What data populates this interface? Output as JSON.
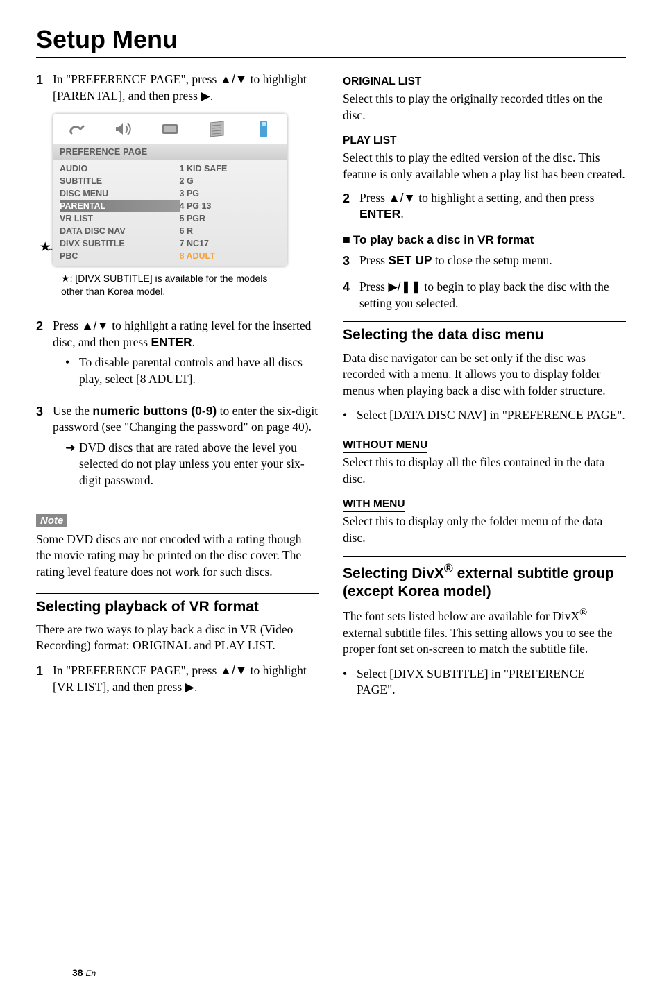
{
  "title": "Setup Menu",
  "left": {
    "step1": {
      "pre": "In \"PREFERENCE PAGE\", press ",
      "arrows": "▲/▼",
      "mid": " to highlight [PARENTAL], and then press ",
      "end": "▶",
      "dot": "."
    },
    "screenshot": {
      "header": "PREFERENCE PAGE",
      "left_rows": [
        "AUDIO",
        "SUBTITLE",
        "DISC MENU",
        "PARENTAL",
        "VR LIST",
        "DATA DISC NAV",
        "DIVX SUBTITLE",
        "PBC"
      ],
      "left_sel_index": 3,
      "right_rows": [
        "1 KID SAFE",
        "2 G",
        "3 PG",
        "4 PG 13",
        "5 PGR",
        "6 R",
        "7 NC17",
        "8 ADULT"
      ],
      "right_sel_index": 7
    },
    "caption_star": "★",
    "caption": ": [DIVX SUBTITLE] is available for the models other than Korea model.",
    "step2": {
      "pre": "Press ",
      "arrows": "▲/▼",
      "mid": " to highlight a rating level for the inserted disc, and then press ",
      "btn": "ENTER",
      "dot": ".",
      "bullet": "To disable parental controls and have all discs play, select [8 ADULT]."
    },
    "step3": {
      "pre": "Use the ",
      "btn": "numeric buttons (0-9)",
      "mid": " to enter the six-digit password (see \"Changing the password\" on page 40).",
      "arrow_bullet": "DVD discs that are rated above the level you selected do not play unless you enter your six-digit password."
    },
    "note_label": "Note",
    "note_text": "Some DVD discs are not encoded with a rating though the movie rating may be printed on the disc cover. The rating level feature does not work for such discs.",
    "sectionVR": {
      "heading": "Selecting playback of VR format",
      "para": "There are two ways to play back a disc in VR (Video Recording) format: ORIGINAL and PLAY LIST.",
      "step1": {
        "pre": "In \"PREFERENCE PAGE\", press ",
        "arrows": "▲/▼",
        "mid": " to highlight [VR LIST], and then press ",
        "end": "▶",
        "dot": "."
      }
    }
  },
  "right": {
    "orig": {
      "label": "ORIGINAL LIST",
      "body": "Select this to play the originally recorded titles on the disc."
    },
    "play": {
      "label": "PLAY LIST",
      "body": "Select this to play the edited version of the disc. This feature is only available when a play list has been created."
    },
    "step2": {
      "pre": "Press ",
      "arrows": "▲/▼",
      "mid": " to highlight a setting, and then press ",
      "btn": "ENTER",
      "dot": "."
    },
    "square_heading": "To play back a disc in VR format",
    "step3": {
      "pre": "Press ",
      "btn": "SET UP",
      "post": " to close the setup menu."
    },
    "step4": {
      "pre": "Press ",
      "sym": "▶/❚❚",
      "post": " to begin to play back the disc with the setting you selected."
    },
    "sectionData": {
      "heading": "Selecting the data disc menu",
      "para": "Data disc navigator can be set only if the disc was recorded with a menu. It allows you to display folder menus when playing back a disc with folder structure.",
      "bullet": "Select [DATA DISC NAV] in \"PREFERENCE PAGE\"."
    },
    "without": {
      "label": "WITHOUT MENU",
      "body": "Select this to display all the files contained in the data disc."
    },
    "with": {
      "label": "WITH MENU",
      "body": "Select this to display only the folder menu of the data disc."
    },
    "sectionDivx": {
      "heading_pre": "Selecting DivX",
      "heading_reg": "®",
      "heading_post": " external subtitle group (except Korea model)",
      "para_pre": "The font sets listed below are available for DivX",
      "para_reg": "®",
      "para_post": " external subtitle files. This setting allows you to see the proper font set on-screen to match the subtitle file.",
      "bullet": "Select [DIVX SUBTITLE] in \"PREFERENCE PAGE\"."
    }
  },
  "footer": {
    "page": "38",
    "lang": "En"
  }
}
